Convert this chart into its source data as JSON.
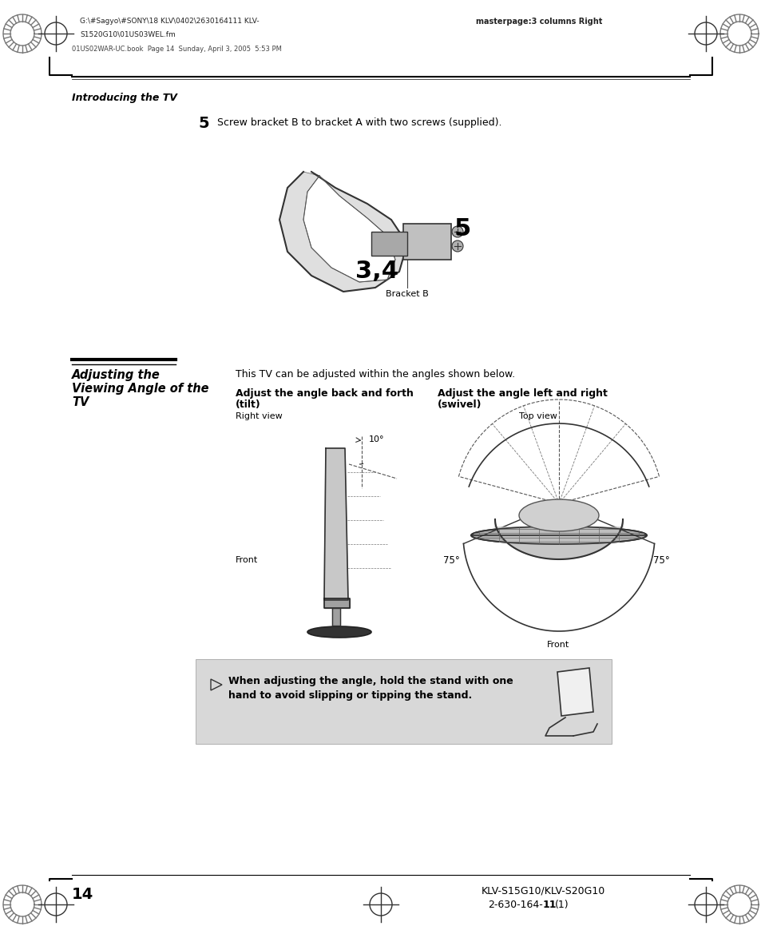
{
  "bg_color": "#ffffff",
  "header_left_line1": "G:\\#Sagyo\\#SONY\\18 KLV\\0402\\2630164111 KLV-",
  "header_left_line2": "S1520G10\\01US03WEL.fm",
  "header_left_line3": "01US02WAR-UC.book  Page 14  Sunday, April 3, 2005  5:53 PM",
  "header_right": "masterpage:3 columns Right",
  "section_label": "Introducing the TV",
  "step5_number": "5",
  "step5_text": "Screw bracket B to bracket A with two screws (supplied).",
  "bracket_b_label": "Bracket B",
  "section_title_line1": "Adjusting the",
  "section_title_line2": "Viewing Angle of the",
  "section_title_line3": "TV",
  "section_intro": "This TV can be adjusted within the angles shown below.",
  "tilt_title1": "Adjust the angle back and forth",
  "tilt_title2": "(tilt)",
  "swivel_title1": "Adjust the angle left and right",
  "swivel_title2": "(swivel)",
  "tilt_angle": "10°",
  "swivel_angle_left": "75°",
  "swivel_angle_right": "75°",
  "right_view_label": "Right view",
  "top_view_label": "Top view",
  "front_label_tilt": "Front",
  "front_label_swivel": "Front",
  "note_text1": "When adjusting the angle, hold the stand with one",
  "note_text2": "hand to avoid slipping or tipping the stand.",
  "note_bg": "#d8d8d8",
  "footer_page": "14",
  "footer_right_line1": "KLV-S15G10/KLV-S20G10",
  "footer_right_line2": "2-630-164-",
  "footer_right_bold": "11",
  "footer_right_end": "(1)"
}
